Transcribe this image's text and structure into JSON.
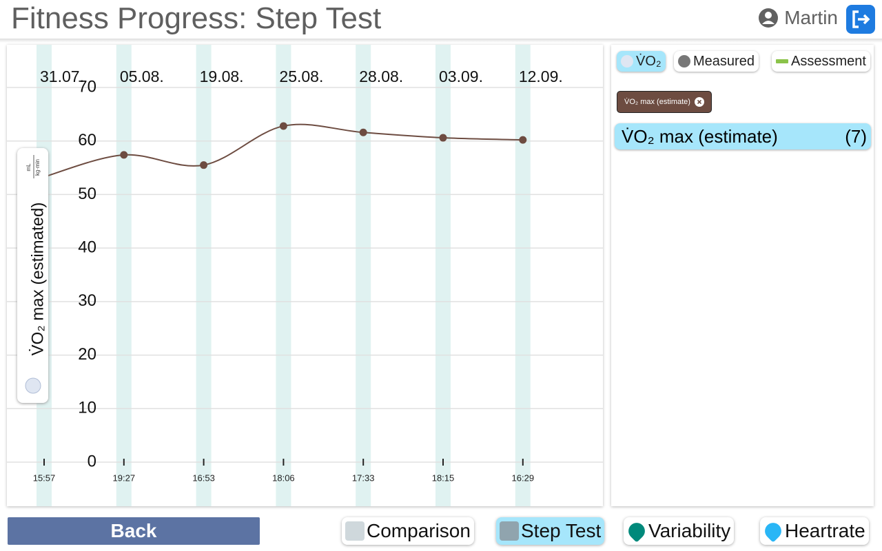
{
  "header": {
    "title": "Fitness Progress: Step Test",
    "user": "Martin"
  },
  "chart_data": {
    "type": "line",
    "categories": [
      "31.07.",
      "05.08.",
      "19.08.",
      "25.08.",
      "28.08.",
      "03.09.",
      "12.09."
    ],
    "times": [
      "15:57",
      "19:27",
      "16:53",
      "18:06",
      "17:33",
      "18:15",
      "16:29"
    ],
    "y_label": "V̇O₂ max (estimated)",
    "y_unit_numerator": "mL",
    "y_unit_denominator": "kg·min",
    "series": [
      {
        "name": "V̇O₂ max (estimate)",
        "color": "#6d4c41",
        "values": [
          53.3,
          57.4,
          55.5,
          62.8,
          61.6,
          60.6,
          60.2
        ]
      }
    ],
    "ylim": [
      0,
      70
    ],
    "yticks": [
      0,
      10,
      20,
      30,
      40,
      50,
      60,
      70
    ],
    "grid": true,
    "band_color": "#e0f2f1"
  },
  "filters": [
    "V̇O₂",
    "Measured",
    "Assessment"
  ],
  "list": {
    "count": "(7)"
  },
  "nav": {
    "back": "Back",
    "tabs": [
      "Comparison",
      "Step Test",
      "Variability",
      "Heartrate"
    ],
    "active_tab": 1
  }
}
